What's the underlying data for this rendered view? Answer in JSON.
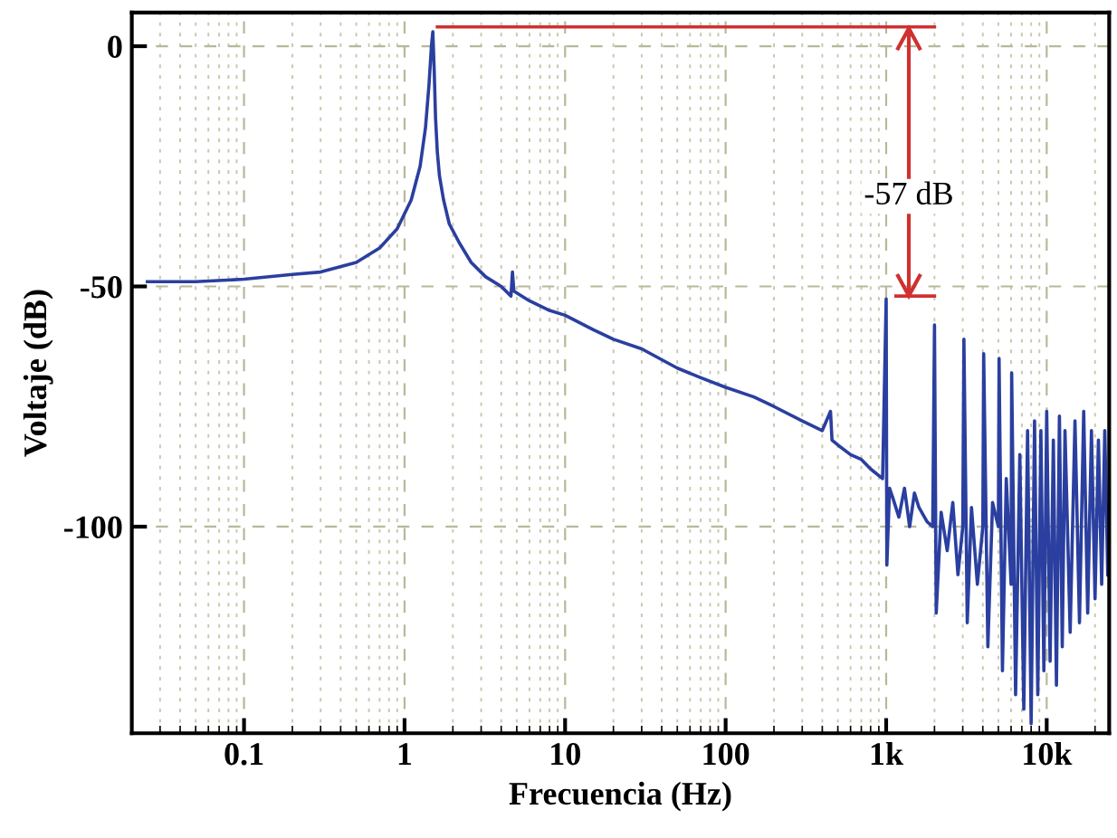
{
  "chart_data": {
    "type": "line",
    "xlabel": "Frecuencia (Hz)",
    "ylabel": "Voltaje (dB)",
    "log": "x",
    "grid": true,
    "marker": "none",
    "line_style": "solid",
    "xlim": [
      0.02,
      24500
    ],
    "ylim": [
      -143,
      7
    ],
    "xticks": [
      {
        "value": 0.1,
        "label": "0.1"
      },
      {
        "value": 1,
        "label": "1"
      },
      {
        "value": 10,
        "label": "10"
      },
      {
        "value": 100,
        "label": "100"
      },
      {
        "value": 1000,
        "label": "1k"
      },
      {
        "value": 10000,
        "label": "10k"
      }
    ],
    "yticks": [
      0,
      -50,
      -100
    ],
    "annotations": [
      "-57 dB"
    ],
    "series": [
      {
        "color": "#2a3f9f",
        "x": [
          0.025,
          0.05,
          0.1,
          0.2,
          0.3,
          0.5,
          0.7,
          0.9,
          1.1,
          1.25,
          1.35,
          1.42,
          1.47,
          1.5,
          1.53,
          1.56,
          1.6,
          1.65,
          1.75,
          1.9,
          2.2,
          2.6,
          3.2,
          4.0,
          4.6,
          4.7,
          4.8,
          6,
          8,
          10,
          15,
          20,
          30,
          50,
          70,
          100,
          150,
          200,
          300,
          400,
          450,
          460,
          500,
          600,
          700,
          800,
          950,
          1000,
          1010,
          1050,
          1100,
          1200,
          1300,
          1400,
          1500,
          1600,
          1800,
          1950,
          2000,
          2050,
          2200,
          2400,
          2600,
          2800,
          3000,
          3050,
          3200,
          3400,
          3700,
          4000,
          4050,
          4300,
          4600,
          5000,
          5050,
          5300,
          5600,
          6000,
          6050,
          6400,
          6800,
          7200,
          7600,
          8000,
          8400,
          8800,
          9200,
          9600,
          10000,
          10500,
          11000,
          11500,
          12000,
          12500,
          13000,
          14000,
          15000,
          16000,
          17000,
          18000,
          19000,
          20000,
          21000,
          22000,
          23000,
          24000
        ],
        "values": [
          -49,
          -49,
          -48.5,
          -47.5,
          -47,
          -45,
          -42,
          -38,
          -32,
          -25,
          -17,
          -8,
          0,
          3,
          -5,
          -15,
          -22,
          -27,
          -32,
          -37,
          -41,
          -45,
          -48,
          -50,
          -52,
          -47,
          -51,
          -53,
          -55,
          -56,
          -59,
          -61,
          -63,
          -67,
          -69,
          -71,
          -73,
          -75,
          -78,
          -80,
          -76,
          -82,
          -83,
          -85,
          -86,
          -88,
          -90,
          -52.6,
          -108,
          -92,
          -94,
          -98,
          -92,
          -100,
          -93,
          -96,
          -99,
          -100,
          -58,
          -118,
          -97,
          -105,
          -95,
          -110,
          -100,
          -61,
          -120,
          -96,
          -112,
          -100,
          -64,
          -125,
          -95,
          -100,
          -65,
          -130,
          -90,
          -112,
          -68,
          -135,
          -85,
          -138,
          -80,
          -141,
          -78,
          -135,
          -80,
          -130,
          -76,
          -128,
          -82,
          -133,
          -77,
          -125,
          -80,
          -122,
          -78,
          -120,
          -76,
          -118,
          -80,
          -115,
          -82,
          -112,
          -80,
          -110
        ]
      },
      {
        "color": "#d03030",
        "x": [
          1.6,
          2000
        ],
        "values": [
          4,
          4
        ]
      },
      {
        "color": "#d03030",
        "x": [
          1150,
          2000
        ],
        "values": [
          -52,
          -52
        ]
      }
    ]
  }
}
